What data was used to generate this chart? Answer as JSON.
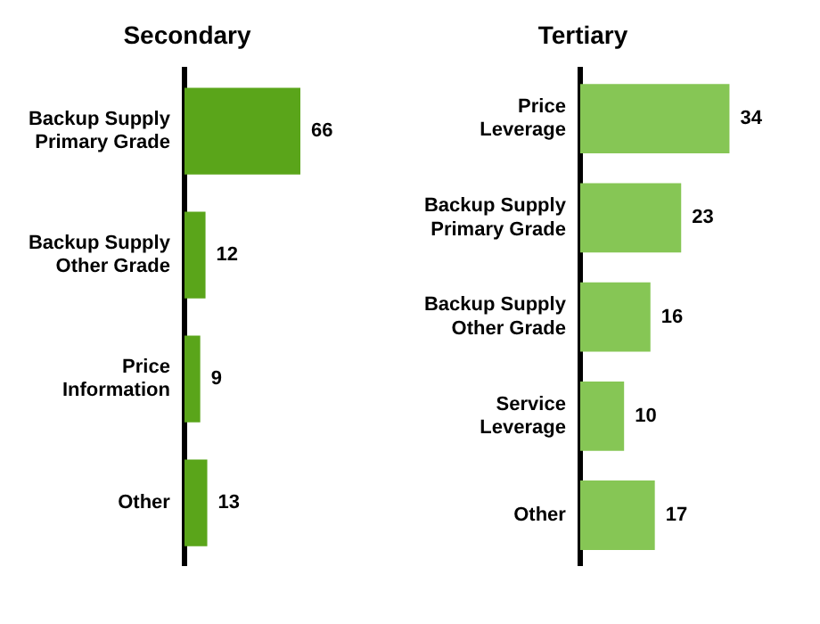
{
  "chart_data": [
    {
      "type": "bar",
      "orientation": "horizontal",
      "title": "Secondary",
      "categories": [
        "Backup Supply Primary Grade",
        "Backup Supply Other Grade",
        "Price Information",
        "Other"
      ],
      "values": [
        66,
        12,
        9,
        13
      ],
      "color": "#5aa51a",
      "data_labels": true
    },
    {
      "type": "bar",
      "orientation": "horizontal",
      "title": "Tertiary",
      "categories": [
        "Price Leverage",
        "Backup Supply Primary Grade",
        "Backup Supply Other Grade",
        "Service Leverage",
        "Other"
      ],
      "values": [
        34,
        23,
        16,
        10,
        17
      ],
      "color": "#86c655",
      "data_labels": true
    }
  ]
}
